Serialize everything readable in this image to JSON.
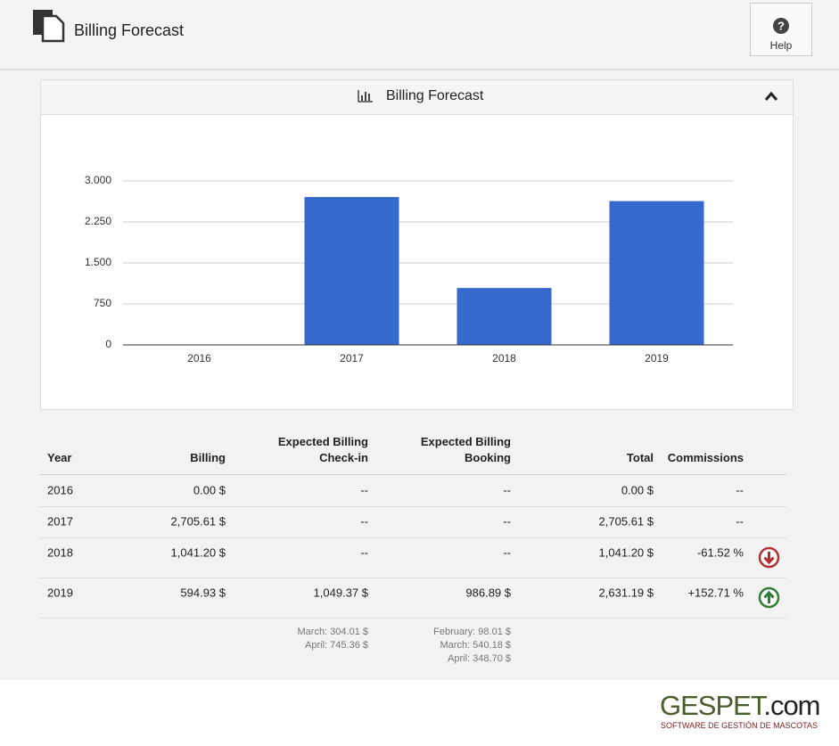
{
  "header": {
    "title": "Billing Forecast",
    "help": "Help"
  },
  "chart_data": {
    "type": "bar",
    "title": "Billing Forecast",
    "categories": [
      "2016",
      "2017",
      "2018",
      "2019"
    ],
    "values": [
      0,
      2705.61,
      1041.2,
      2631.19
    ],
    "color": "#3569cc",
    "ylim": [
      0,
      3000
    ],
    "yticks": [
      {
        "value": 0,
        "label": "0"
      },
      {
        "value": 750,
        "label": "750"
      },
      {
        "value": 1500,
        "label": "1.500"
      },
      {
        "value": 2250,
        "label": "2.250"
      },
      {
        "value": 3000,
        "label": "3.000"
      }
    ],
    "grid": true
  },
  "table": {
    "columns": [
      "Year",
      "Billing",
      "Expected Billing Check-in",
      "Expected Billing Booking",
      "Total",
      "Commissions"
    ],
    "rows": [
      [
        "2016",
        "0.00 $",
        "--",
        "--",
        "0.00 $",
        "--"
      ],
      [
        "2017",
        "2,705.61 $",
        "--",
        "--",
        "2,705.61 $",
        "--"
      ],
      [
        "2018",
        "1,041.20 $",
        "--",
        "--",
        "1,041.20 $",
        "-61.52 %"
      ],
      [
        "2019",
        "594.93 $",
        "1,049.37 $",
        "986.89 $",
        "2,631.19 $",
        "+152.71 %"
      ]
    ],
    "notes": [
      [
        "March: 304.01 $",
        "April: 745.36 $"
      ],
      [
        "February: 98.01 $",
        "March: 540.18 $",
        "April: 348.70 $"
      ]
    ]
  },
  "footer": {
    "brand": "GESPET",
    "domain": ".com",
    "tagline": "SOFTWARE DE GESTIÓN DE MASCOTAS"
  }
}
